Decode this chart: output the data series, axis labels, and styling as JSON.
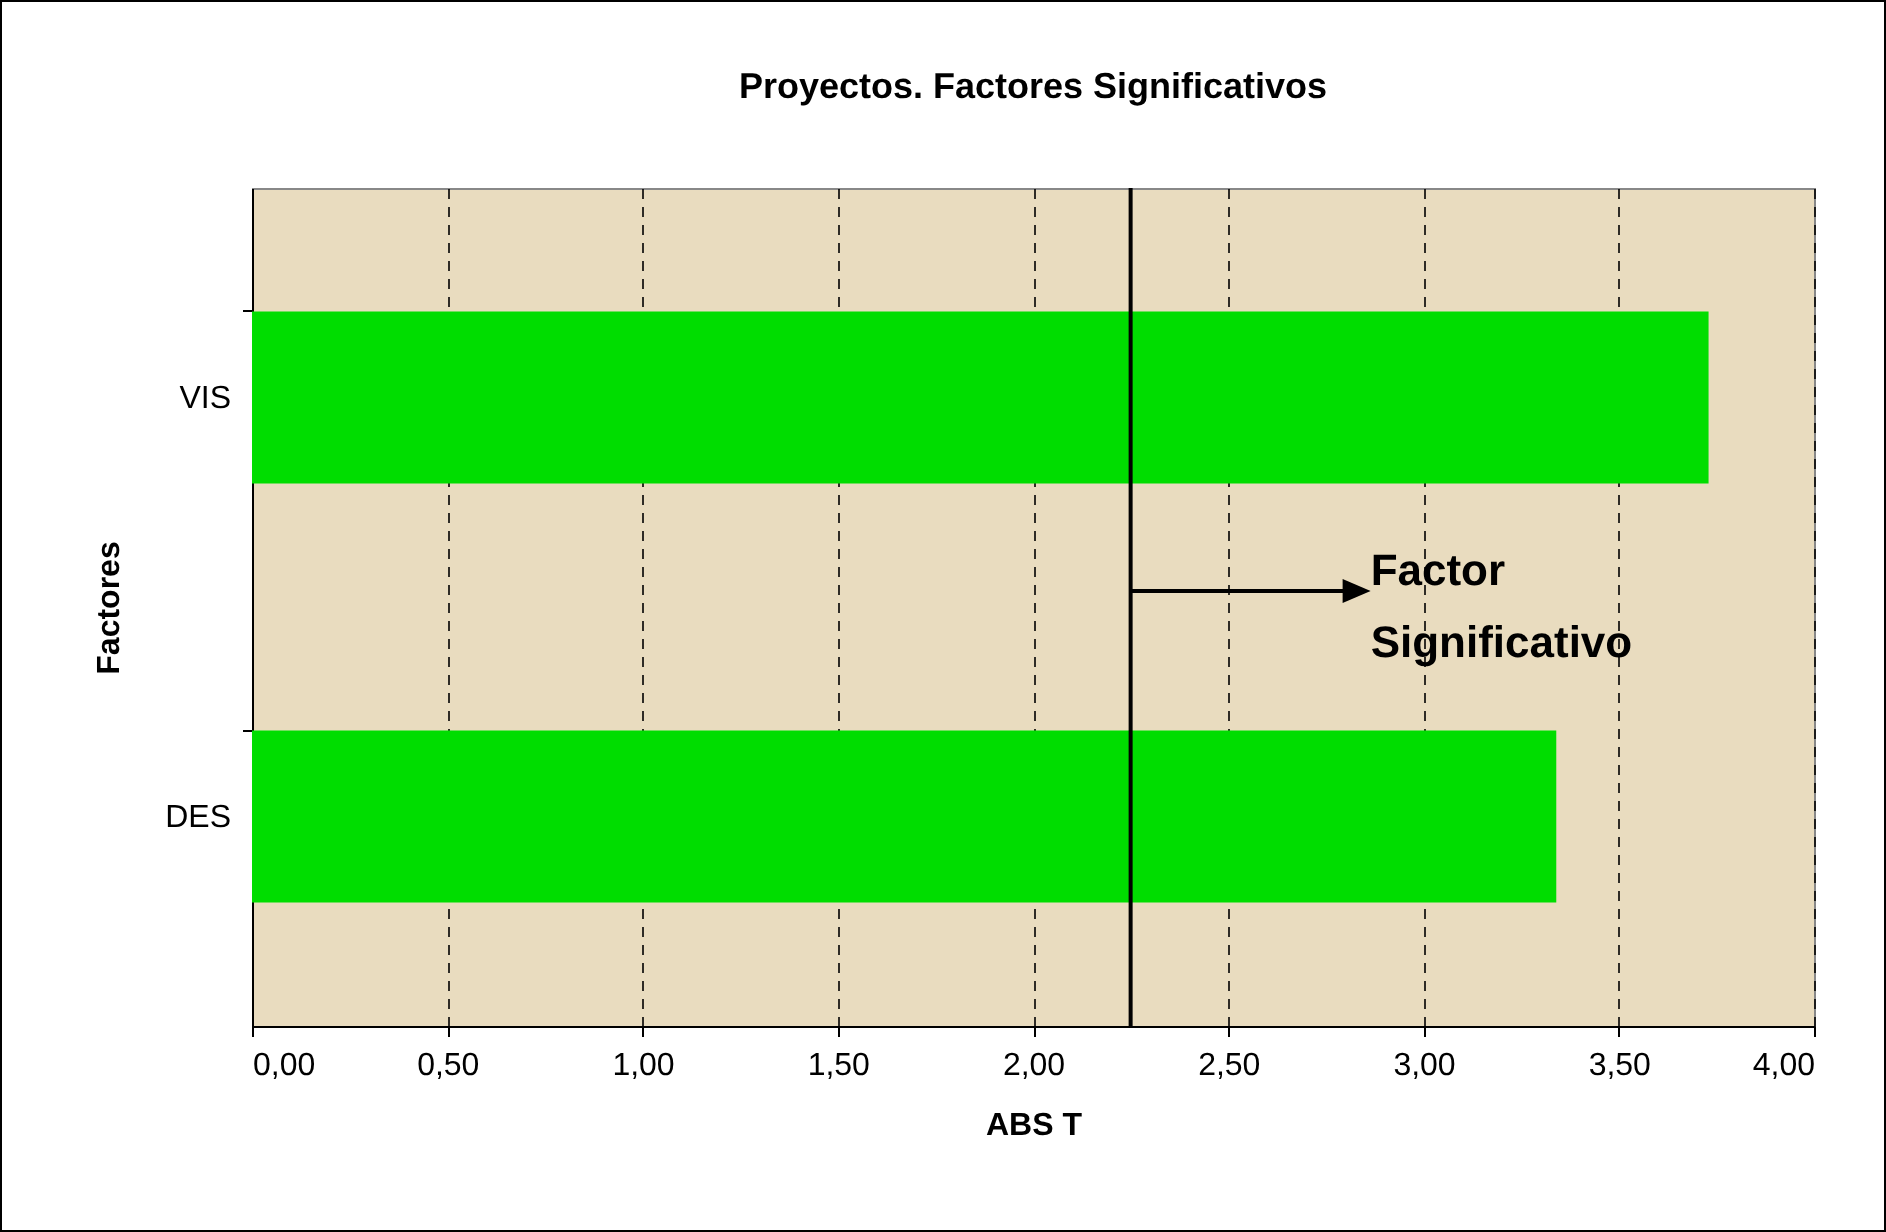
{
  "chart_data": {
    "type": "bar",
    "orientation": "horizontal",
    "title": "Proyectos. Factores Significativos",
    "xlabel": "ABS T",
    "ylabel": "Factores",
    "categories": [
      "VIS",
      "DES"
    ],
    "values": [
      3.73,
      3.34
    ],
    "color": "#00dd00",
    "xlim": [
      0,
      4
    ],
    "xticks": [
      {
        "value": 0,
        "label": "0,00"
      },
      {
        "value": 0.5,
        "label": "0,50"
      },
      {
        "value": 1,
        "label": "1,00"
      },
      {
        "value": 1.5,
        "label": "1,50"
      },
      {
        "value": 2,
        "label": "2,00"
      },
      {
        "value": 2.5,
        "label": "2,50"
      },
      {
        "value": 3,
        "label": "3,00"
      },
      {
        "value": 3.5,
        "label": "3,50"
      },
      {
        "value": 4,
        "label": "4,00"
      }
    ],
    "ref_lines": [
      {
        "axis": "x",
        "value": 2.25,
        "label": "Factor Significativo",
        "color": "#000000"
      }
    ],
    "grid": "x"
  }
}
